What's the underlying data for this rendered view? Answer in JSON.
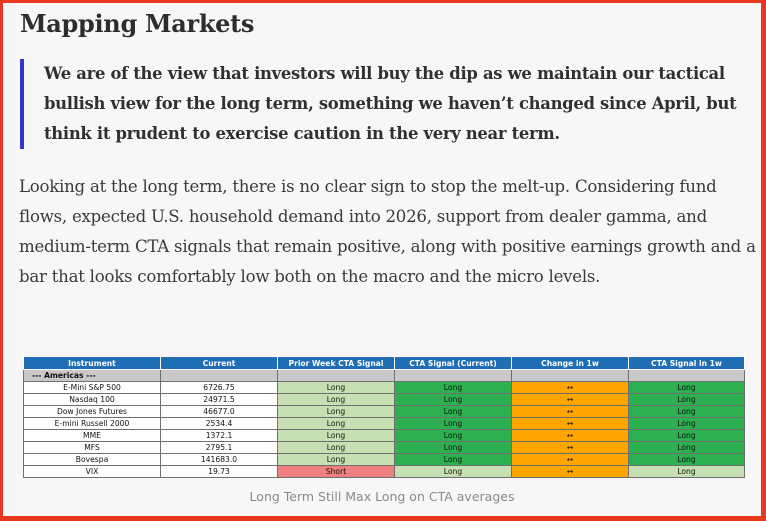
{
  "article": {
    "title": "Mapping Markets",
    "quote": "We are of the view that investors will buy the dip as we maintain our tactical bullish view for the long term, something we haven’t changed since April, but think it prudent to exercise caution in the very near term.",
    "body": "Looking at the long term, there is no clear sign to stop the melt-up. Considering fund flows, expected U.S. household demand into 2026, support from dealer gamma, and medium-term CTA signals that remain positive, along with positive earnings growth and a bar that looks comfortably low both on the macro and the micro levels.",
    "caption": "Long Term Still Max Long on CTA averages"
  },
  "colors": {
    "quote_border": "#3434c9",
    "header": "#1f6eb5",
    "long_light": "#c6e0b4",
    "long_dark": "#2db050",
    "change": "#ffa500",
    "short": "#f08080",
    "frame": "#e8391f"
  },
  "cta_table": {
    "headers": [
      "Instrument",
      "Current",
      "Prior Week CTA Signal",
      "CTA Signal (Current)",
      "Change in 1w",
      "CTA Signal in 1w"
    ],
    "region": "--- Americas ---",
    "rows": [
      {
        "instrument": "E-Mini S&P 500",
        "current": "6726.75",
        "prior": "Long",
        "signal": "Long",
        "change": "↔",
        "next": "Long"
      },
      {
        "instrument": "Nasdaq 100",
        "current": "24971.5",
        "prior": "Long",
        "signal": "Long",
        "change": "↔",
        "next": "Long"
      },
      {
        "instrument": "Dow Jones Futures",
        "current": "46677.0",
        "prior": "Long",
        "signal": "Long",
        "change": "↔",
        "next": "Long"
      },
      {
        "instrument": "E-mini Russell 2000",
        "current": "2534.4",
        "prior": "Long",
        "signal": "Long",
        "change": "↔",
        "next": "Long"
      },
      {
        "instrument": "MME",
        "current": "1372.1",
        "prior": "Long",
        "signal": "Long",
        "change": "↔",
        "next": "Long"
      },
      {
        "instrument": "MFS",
        "current": "2795.1",
        "prior": "Long",
        "signal": "Long",
        "change": "↔",
        "next": "Long"
      },
      {
        "instrument": "Bovespa",
        "current": "141683.0",
        "prior": "Long",
        "signal": "Long",
        "change": "↔",
        "next": "Long"
      },
      {
        "instrument": "VIX",
        "current": "19.73",
        "prior": "Short",
        "signal": "Long",
        "change": "↔",
        "next": "Long"
      }
    ]
  }
}
